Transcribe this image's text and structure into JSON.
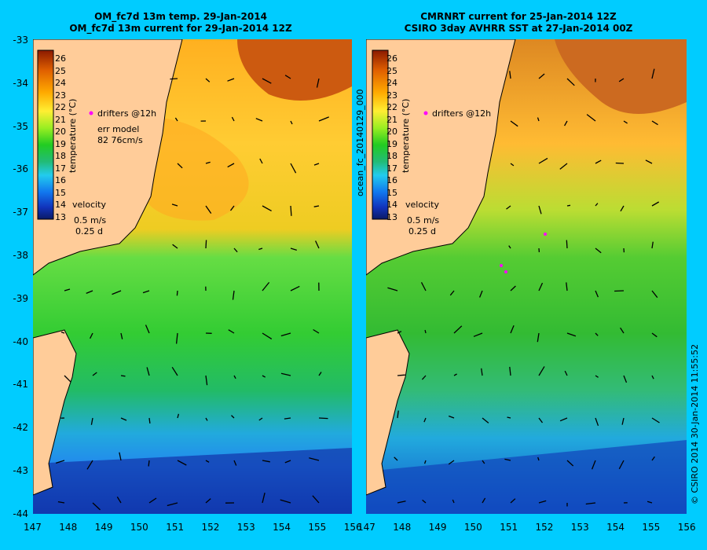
{
  "panels": [
    {
      "title_line1": "OM_fc7d 13m temp. 29-Jan-2014",
      "title_line2": "OM_fc7d 13m current for 29-Jan-2014 12Z",
      "colorbar_ticks": [
        "26",
        "25",
        "24",
        "23",
        "22",
        "21",
        "20",
        "19",
        "18",
        "17",
        "16",
        "15",
        "14",
        "13"
      ],
      "colorbar_label": "temperature (°C)",
      "drifters_label": "drifters @12h",
      "err_model_label": "err model",
      "err_model_value": "82 76cm/s",
      "velocity_label": "velocity",
      "velocity_scale": "0.5 m/s",
      "velocity_time": "0.25 d"
    },
    {
      "title_line1": "CMRNRT current for 25-Jan-2014 12Z",
      "title_line2": "CSIRO 3day AVHRR SST at 27-Jan-2014 00Z",
      "colorbar_ticks": [
        "26",
        "25",
        "24",
        "23",
        "22",
        "21",
        "20",
        "19",
        "18",
        "17",
        "16",
        "15",
        "14",
        "13"
      ],
      "colorbar_label": "temperature (°C)",
      "drifters_label": "drifters @12h",
      "velocity_label": "velocity",
      "velocity_scale": "0.5 m/s",
      "velocity_time": "0.25 d",
      "side_label": "ocean_fc_20140129_000"
    }
  ],
  "lat_labels": [
    "-33",
    "-34",
    "-35",
    "-36",
    "-37",
    "-38",
    "-39",
    "-40",
    "-41",
    "-42",
    "-43",
    "-44"
  ],
  "lon_labels": [
    "147",
    "148",
    "149",
    "150",
    "151",
    "152",
    "153",
    "154",
    "155",
    "156"
  ],
  "credit": "© CSIRO 2014   30-Jan-2014 11:55:52",
  "colors": {
    "background": "#00ccff",
    "land": "#ffcc99",
    "drifter": "#ff00ff"
  }
}
